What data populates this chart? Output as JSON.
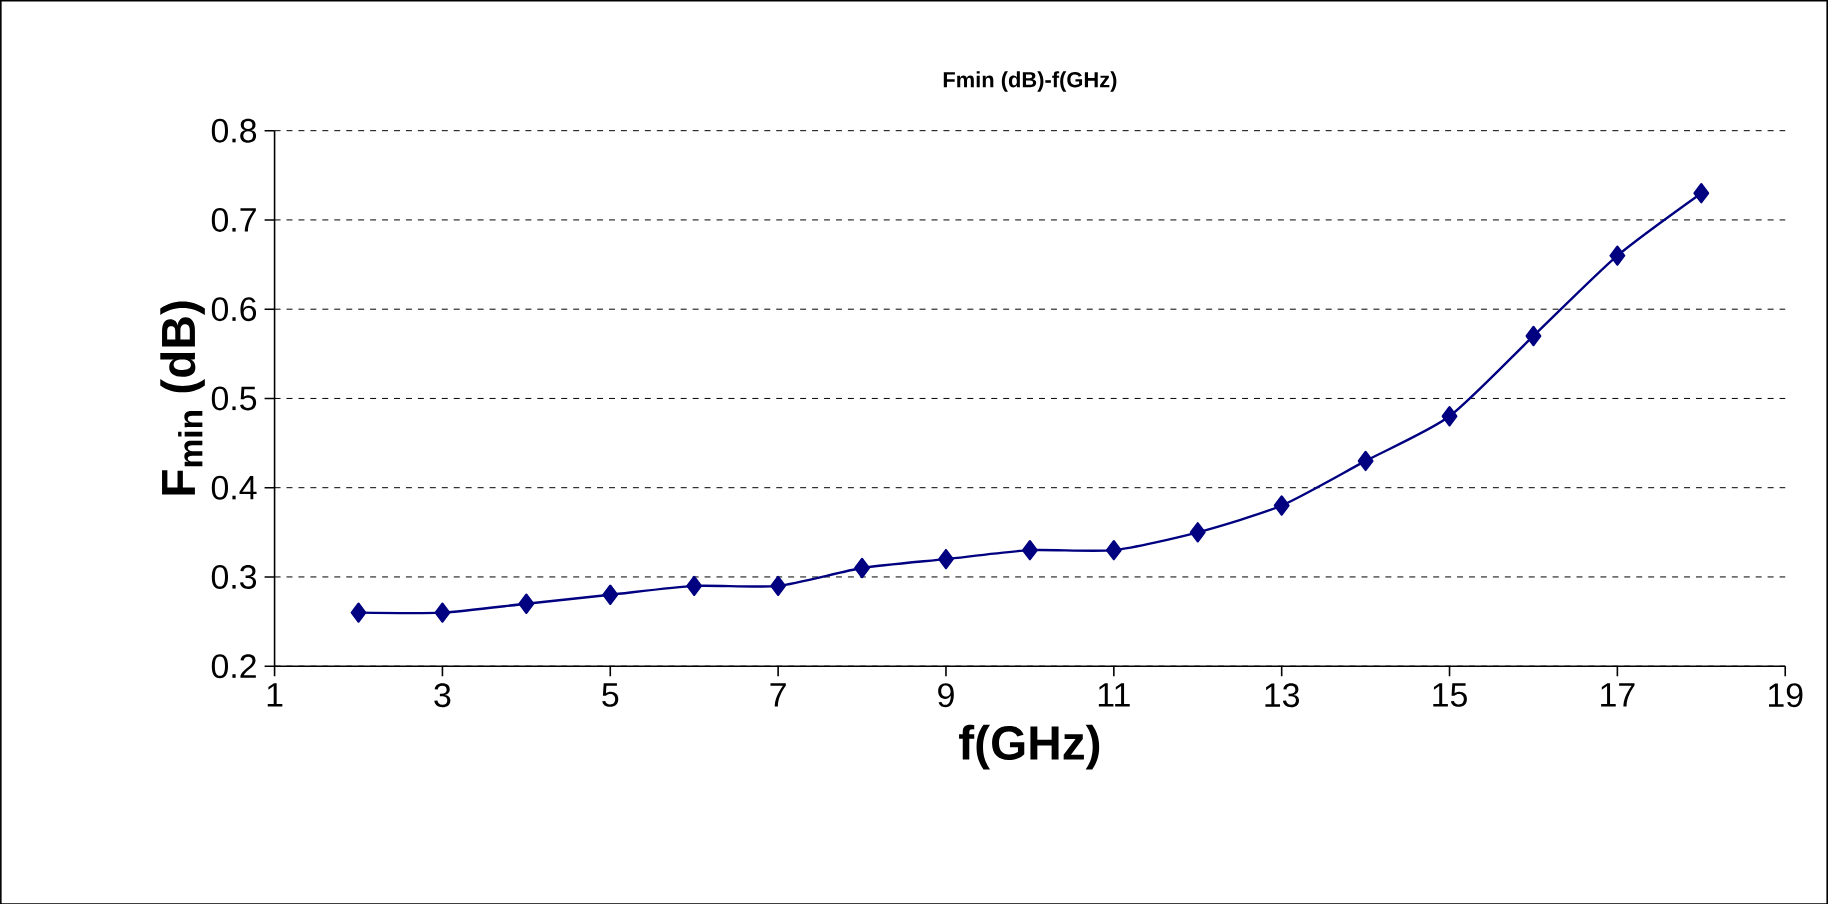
{
  "chart_data": {
    "type": "line",
    "title": "Fmin (dB)-f(GHz)",
    "xlabel": "f(GHz)",
    "ylabel": "F$_{min}$ (dB)",
    "x": [
      2,
      3,
      4,
      5,
      6,
      7,
      8,
      9,
      10,
      11,
      12,
      13,
      14,
      15,
      16,
      17,
      18
    ],
    "series": [
      {
        "color": "#000080",
        "values": [
          0.26,
          0.26,
          0.27,
          0.28,
          0.29,
          0.29,
          0.31,
          0.32,
          0.33,
          0.33,
          0.35,
          0.38,
          0.43,
          0.48,
          0.57,
          0.66,
          0.73
        ]
      }
    ],
    "xlim": [
      1,
      19
    ],
    "xticks": [
      1,
      3,
      5,
      7,
      9,
      11,
      13,
      15,
      17,
      19
    ],
    "ylim": [
      0.2,
      0.8
    ],
    "yticks": [
      0.2,
      0.3,
      0.4,
      0.5,
      0.6,
      0.7,
      0.8
    ],
    "grid": "y",
    "marker": "diamond",
    "line_style": "solid"
  }
}
